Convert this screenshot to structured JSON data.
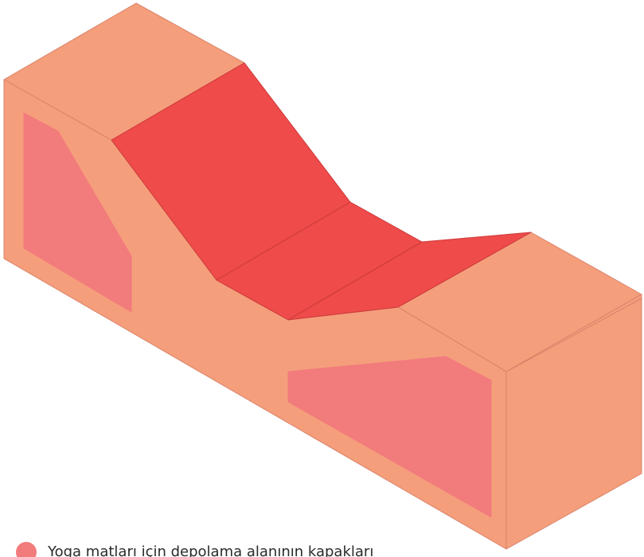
{
  "colors": {
    "body": "#F59E7C",
    "body_edge": "#D9836A",
    "channel": "#EE4B4A",
    "channel_edge": "#CC3A3A",
    "lid_panel": "#F27B7C",
    "background": "#FFFFFF"
  },
  "legend": {
    "swatch_color": "#F27B7C",
    "label": "Yoga matları için depolama alanının kapakları"
  }
}
